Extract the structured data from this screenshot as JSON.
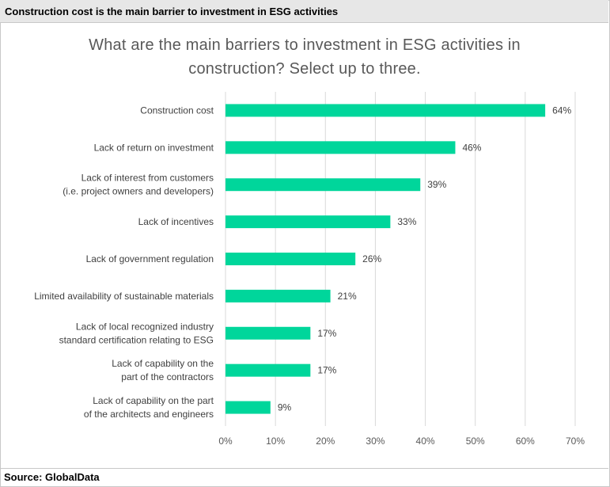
{
  "header": {
    "title": "Construction cost is the main barrier to investment in ESG activities"
  },
  "footer": {
    "source": "Source: GlobalData"
  },
  "colors": {
    "bar": "#00d69b",
    "grid": "#d9d9d9",
    "header_bg": "#e7e7e7"
  },
  "chart_data": {
    "type": "bar",
    "orientation": "horizontal",
    "title": "What are the main barriers to investment in ESG activities in construction? Select up to three.",
    "categories": [
      [
        "Construction cost"
      ],
      [
        "Lack of return on investment"
      ],
      [
        "Lack of interest from customers",
        "(i.e. project owners and developers)"
      ],
      [
        "Lack of incentives"
      ],
      [
        "Lack of government regulation"
      ],
      [
        "Limited availability of sustainable materials"
      ],
      [
        "Lack of local recognized industry",
        "standard certification relating to ESG"
      ],
      [
        "Lack of capability on the",
        "part of the contractors"
      ],
      [
        "Lack of capability on the part",
        "of the architects and engineers"
      ]
    ],
    "values": [
      64,
      46,
      39,
      33,
      26,
      21,
      17,
      17,
      9
    ],
    "value_labels": [
      "64%",
      "46%",
      "39%",
      "33%",
      "26%",
      "21%",
      "17%",
      "17%",
      "9%"
    ],
    "xlim": [
      0,
      70
    ],
    "xticks": [
      0,
      10,
      20,
      30,
      40,
      50,
      60,
      70
    ],
    "xtick_labels": [
      "0%",
      "10%",
      "20%",
      "30%",
      "40%",
      "50%",
      "60%",
      "70%"
    ],
    "grid": true,
    "legend": "none"
  }
}
